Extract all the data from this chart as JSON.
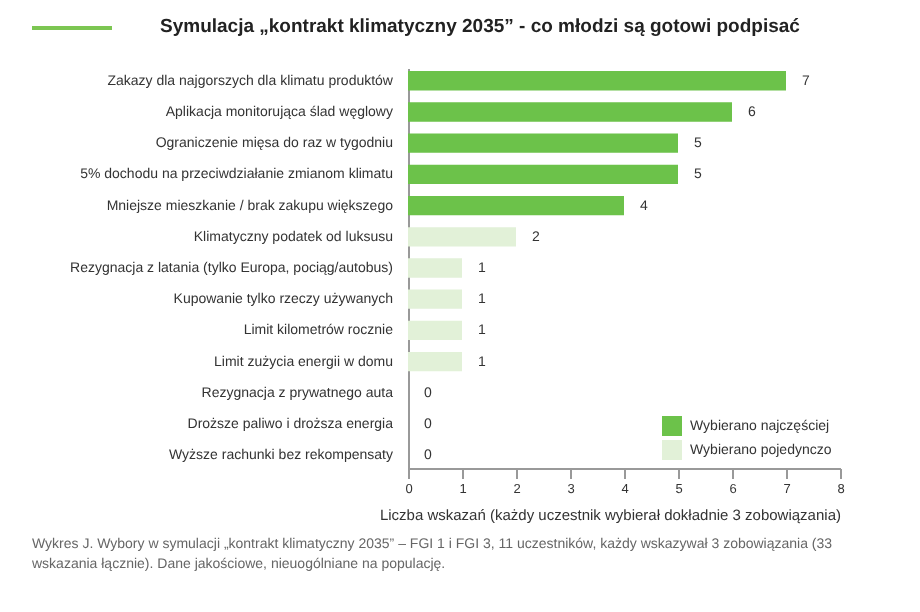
{
  "chart_data": {
    "type": "bar",
    "orientation": "horizontal",
    "title": "Symulacja „kontrakt klimatyczny 2035” - co młodzi są gotowi podpisać",
    "xlabel": "Liczba wskazań (każdy uczestnik wybierał dokładnie 3 zobowiązania)",
    "categories": [
      "Zakazy dla najgorszych dla klimatu produktów",
      "Aplikacja monitorująca ślad węglowy",
      "Ograniczenie mięsa do raz w tygodniu",
      "5% dochodu na przeciwdziałanie zmianom klimatu",
      "Mniejsze mieszkanie / brak zakupu większego",
      "Klimatyczny podatek od luksusu",
      "Rezygnacja z latania (tylko Europa, pociąg/autobus)",
      "Kupowanie tylko rzeczy używanych",
      "Limit kilometrów rocznie",
      "Limit zużycia energii w domu",
      "Rezygnacja z prywatnego auta",
      "Droższe paliwo i droższa energia",
      "Wyższe rachunki bez rekompensaty"
    ],
    "series": [
      {
        "name": "Wybierano najczęściej",
        "color": "#6cc24a",
        "values": [
          7,
          6,
          5,
          5,
          4,
          null,
          null,
          null,
          null,
          null,
          null,
          null,
          null
        ]
      },
      {
        "name": "Wybierano pojedynczo",
        "color": "#e2f1d8",
        "values": [
          null,
          null,
          null,
          null,
          null,
          2,
          1,
          1,
          1,
          1,
          0,
          0,
          0
        ]
      }
    ],
    "xlim": [
      0,
      8
    ],
    "xticks": [
      0,
      1,
      2,
      3,
      4,
      5,
      6,
      7,
      8
    ],
    "data_labels": true,
    "legend": "bottom right",
    "annotations": [
      "Wykres J.   Wybory w symulacji „kontrakt klimatyczny 2035” – FGI 1 i FGI 3, 11 uczestników, każdy wskazywał 3 zobowiązania (33 wskazania łącznie). Dane jakościowe, nieuogólniane na populację."
    ]
  }
}
